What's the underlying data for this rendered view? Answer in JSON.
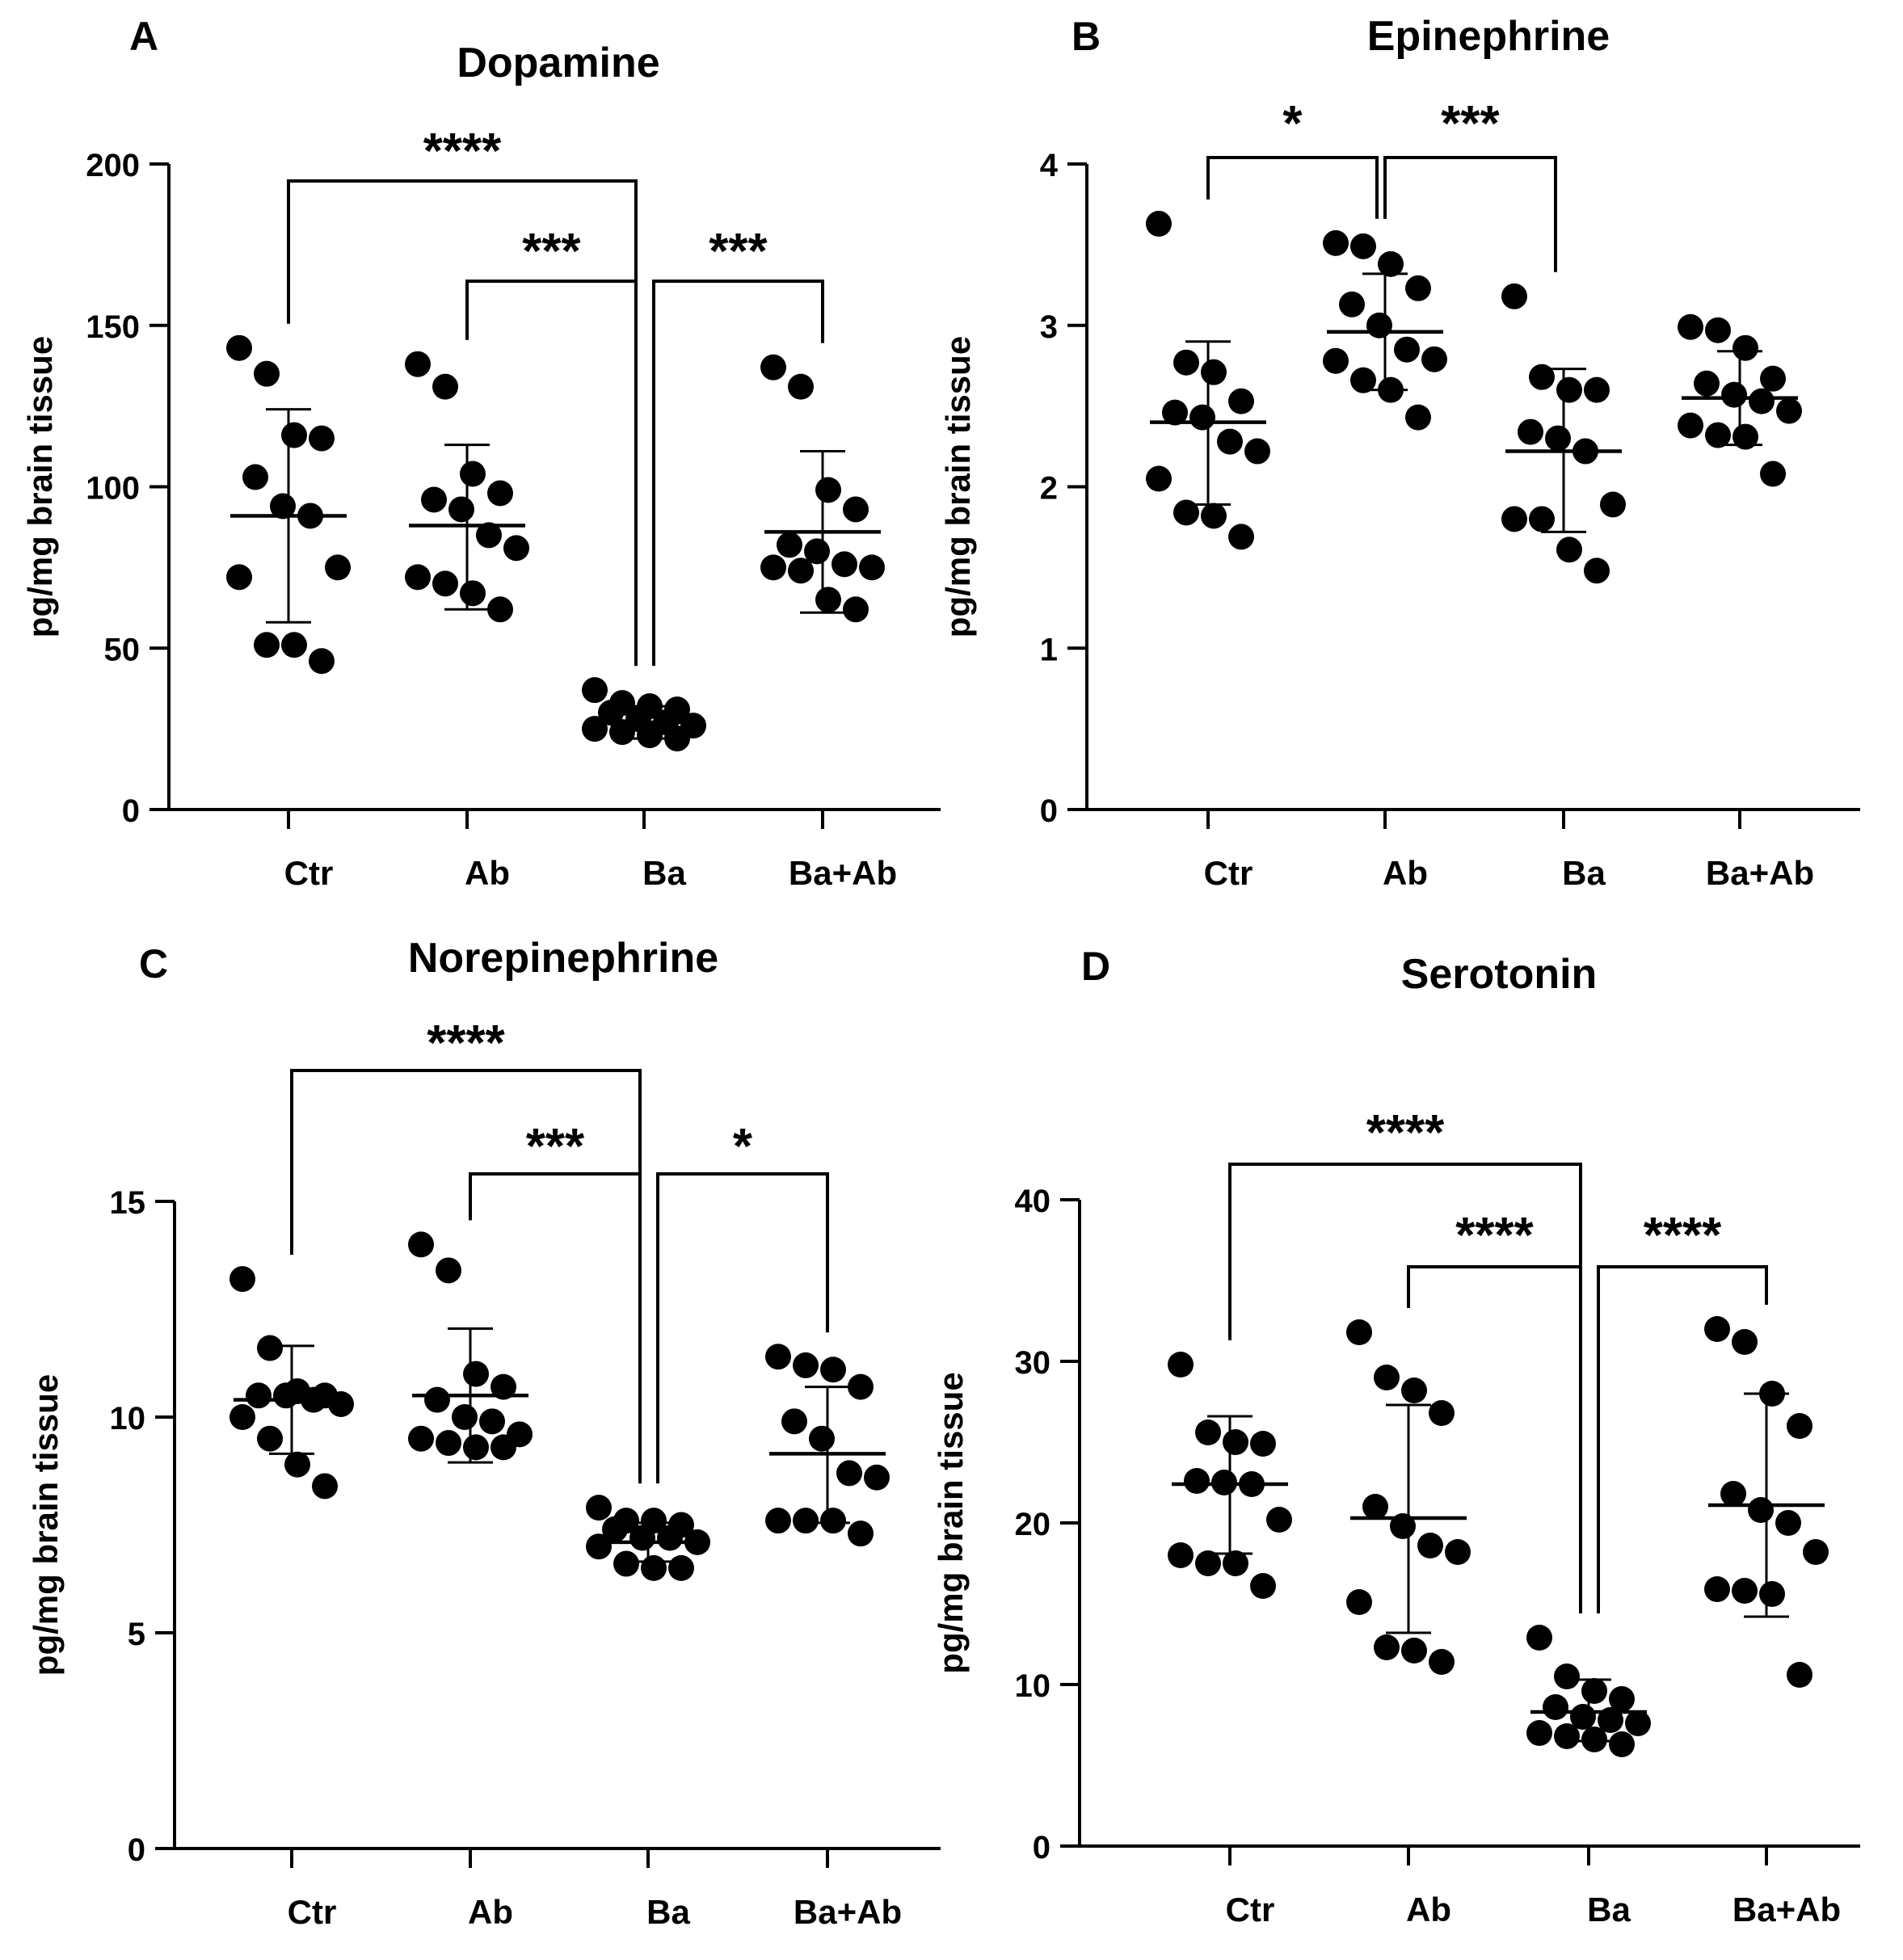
{
  "chart_data": [
    {
      "panel": "A",
      "type": "scatter",
      "title": "Dopamine",
      "ylabel": "pg/mg brain tissue",
      "ylim": [
        0,
        200
      ],
      "yticks": [
        0,
        50,
        100,
        150,
        200
      ],
      "categories": [
        "Ctr",
        "Ab",
        "Ba",
        "Ba+Ab"
      ],
      "groups": [
        {
          "name": "Ctr",
          "mean": 91,
          "sd_low": 58,
          "sd_high": 124,
          "points": [
            143,
            135,
            116,
            115,
            103,
            94,
            91,
            75,
            72,
            51,
            51,
            46
          ]
        },
        {
          "name": "Ab",
          "mean": 88,
          "sd_low": 62,
          "sd_high": 113,
          "points": [
            138,
            131,
            104,
            98,
            96,
            93,
            85,
            81,
            72,
            70,
            67,
            62
          ]
        },
        {
          "name": "Ba",
          "mean": 27,
          "sd_low": 22,
          "sd_high": 32,
          "points": [
            37,
            33,
            32,
            31,
            30,
            28,
            27,
            26,
            25,
            24,
            23,
            22
          ]
        },
        {
          "name": "Ba+Ab",
          "mean": 86,
          "sd_low": 61,
          "sd_high": 111,
          "points": [
            137,
            131,
            99,
            93,
            82,
            80,
            76,
            75,
            75,
            74,
            65,
            62
          ]
        }
      ],
      "comparisons": [
        {
          "from": 0,
          "to": 2,
          "label": "****"
        },
        {
          "from": 1,
          "to": 2,
          "label": "***"
        },
        {
          "from": 2,
          "to": 3,
          "label": "***"
        }
      ]
    },
    {
      "panel": "B",
      "type": "scatter",
      "title": "Epinephrine",
      "ylabel": "pg/mg brain tissue",
      "ylim": [
        0,
        4
      ],
      "yticks": [
        0,
        1,
        2,
        3,
        4
      ],
      "categories": [
        "Ctr",
        "Ab",
        "Ba",
        "Ba+Ab"
      ],
      "groups": [
        {
          "name": "Ctr",
          "mean": 2.4,
          "sd_low": 1.89,
          "sd_high": 2.9,
          "points": [
            3.63,
            2.77,
            2.71,
            2.53,
            2.46,
            2.43,
            2.28,
            2.22,
            2.05,
            1.84,
            1.82,
            1.69
          ]
        },
        {
          "name": "Ab",
          "mean": 2.96,
          "sd_low": 2.6,
          "sd_high": 3.32,
          "points": [
            3.51,
            3.49,
            3.38,
            3.23,
            3.13,
            3.0,
            2.85,
            2.79,
            2.78,
            2.66,
            2.6,
            2.43
          ]
        },
        {
          "name": "Ba",
          "mean": 2.22,
          "sd_low": 1.72,
          "sd_high": 2.73,
          "points": [
            3.18,
            2.68,
            2.6,
            2.6,
            2.34,
            2.3,
            2.22,
            1.89,
            1.8,
            1.8,
            1.61,
            1.48
          ]
        },
        {
          "name": "Ba+Ab",
          "mean": 2.55,
          "sd_low": 2.26,
          "sd_high": 2.84,
          "points": [
            2.99,
            2.97,
            2.86,
            2.67,
            2.64,
            2.57,
            2.53,
            2.47,
            2.38,
            2.32,
            2.31,
            2.08
          ]
        }
      ],
      "comparisons": [
        {
          "from": 0,
          "to": 1,
          "label": "*"
        },
        {
          "from": 1,
          "to": 2,
          "label": "***"
        }
      ]
    },
    {
      "panel": "C",
      "type": "scatter",
      "title": "Norepinephrine",
      "ylabel": "pg/mg brain tissue",
      "ylim": [
        0,
        15
      ],
      "yticks": [
        0,
        5,
        10,
        15
      ],
      "categories": [
        "Ctr",
        "Ab",
        "Ba",
        "Ba+Ab"
      ],
      "groups": [
        {
          "name": "Ctr",
          "mean": 10.4,
          "sd_low": 9.15,
          "sd_high": 11.65,
          "points": [
            13.2,
            11.6,
            10.6,
            10.5,
            10.5,
            10.5,
            10.4,
            10.3,
            10.0,
            9.5,
            8.9,
            8.4
          ]
        },
        {
          "name": "Ab",
          "mean": 10.5,
          "sd_low": 8.95,
          "sd_high": 12.05,
          "points": [
            14.0,
            13.4,
            11.0,
            10.7,
            10.4,
            10.0,
            9.9,
            9.6,
            9.5,
            9.4,
            9.3,
            9.3
          ]
        },
        {
          "name": "Ba",
          "mean": 7.1,
          "sd_low": 6.65,
          "sd_high": 7.55,
          "points": [
            7.9,
            7.6,
            7.6,
            7.5,
            7.4,
            7.2,
            7.2,
            7.1,
            7.0,
            6.6,
            6.5,
            6.5
          ]
        },
        {
          "name": "Ba+Ab",
          "mean": 9.15,
          "sd_low": 7.55,
          "sd_high": 10.7,
          "points": [
            11.4,
            11.2,
            11.1,
            10.7,
            9.9,
            9.5,
            8.7,
            8.6,
            7.6,
            7.6,
            7.6,
            7.3
          ]
        }
      ],
      "comparisons": [
        {
          "from": 0,
          "to": 2,
          "label": "****"
        },
        {
          "from": 1,
          "to": 2,
          "label": "***"
        },
        {
          "from": 2,
          "to": 3,
          "label": "*"
        }
      ]
    },
    {
      "panel": "D",
      "type": "scatter",
      "title": "Serotonin",
      "ylabel": "pg/mg brain tissue",
      "ylim": [
        0,
        40
      ],
      "yticks": [
        0,
        10,
        20,
        30,
        40
      ],
      "categories": [
        "Ctr",
        "Ab",
        "Ba",
        "Ba+Ab"
      ],
      "groups": [
        {
          "name": "Ctr",
          "mean": 22.4,
          "sd_low": 18.1,
          "sd_high": 26.6,
          "points": [
            29.8,
            25.6,
            25.0,
            24.9,
            22.6,
            22.5,
            22.4,
            20.2,
            18.0,
            17.5,
            17.5,
            16.1
          ]
        },
        {
          "name": "Ab",
          "mean": 20.3,
          "sd_low": 13.2,
          "sd_high": 27.3,
          "points": [
            31.8,
            29.0,
            28.2,
            26.8,
            21.0,
            19.8,
            18.6,
            18.2,
            15.1,
            12.3,
            12.1,
            11.4
          ]
        },
        {
          "name": "Ba",
          "mean": 8.3,
          "sd_low": 6.5,
          "sd_high": 10.3,
          "points": [
            12.9,
            10.5,
            9.6,
            9.1,
            8.6,
            8.0,
            7.8,
            7.6,
            7.0,
            6.8,
            6.6,
            6.3
          ]
        },
        {
          "name": "Ba+Ab",
          "mean": 21.1,
          "sd_low": 14.2,
          "sd_high": 28.0,
          "points": [
            32.0,
            31.2,
            28.0,
            26.0,
            21.8,
            20.8,
            20.0,
            18.2,
            15.9,
            15.8,
            15.6,
            10.6
          ]
        }
      ],
      "comparisons": [
        {
          "from": 0,
          "to": 2,
          "label": "****"
        },
        {
          "from": 1,
          "to": 2,
          "label": "****"
        },
        {
          "from": 2,
          "to": 3,
          "label": "****"
        }
      ]
    }
  ]
}
